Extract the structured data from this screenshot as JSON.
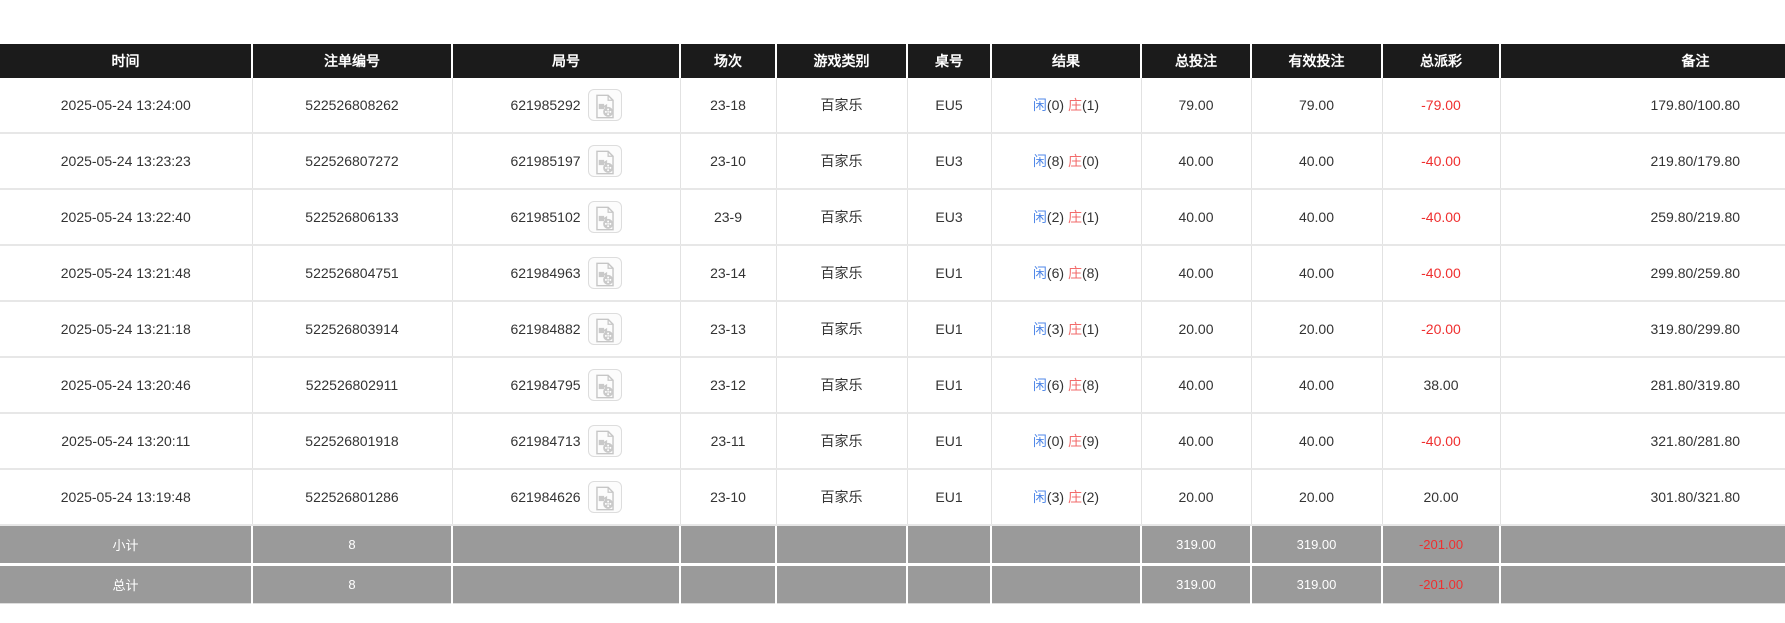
{
  "colors": {
    "header_bg": "#1b1b1b",
    "summary_bg": "#9a9a9a",
    "bet_blue": "#3d7de2",
    "player_blue": "#4f87e8",
    "banker_red": "#f26b6b",
    "loss_red": "#ef2f2f"
  },
  "table": {
    "columns": [
      {
        "label": "时间"
      },
      {
        "label": "注单编号"
      },
      {
        "label": "局号"
      },
      {
        "label": "场次"
      },
      {
        "label": "游戏类别"
      },
      {
        "label": "桌号"
      },
      {
        "label": "结果"
      },
      {
        "label": "总投注"
      },
      {
        "label": "有效投注"
      },
      {
        "label": "总派彩"
      },
      {
        "label": "备注"
      }
    ],
    "rows": [
      {
        "time": "2025-05-24 13:24:00",
        "bet_id": "522526808262",
        "round": "621985292",
        "session": "23-18",
        "game": "百家乐",
        "table_no": "EU5",
        "result_player": "闲",
        "result_player_n": "(0)",
        "result_banker": "庄",
        "result_banker_n": "(1)",
        "total_bet": "79.00",
        "valid_bet": "79.00",
        "payout": "-79.00",
        "remark": "179.80/100.80"
      },
      {
        "time": "2025-05-24 13:23:23",
        "bet_id": "522526807272",
        "round": "621985197",
        "session": "23-10",
        "game": "百家乐",
        "table_no": "EU3",
        "result_player": "闲",
        "result_player_n": "(8)",
        "result_banker": "庄",
        "result_banker_n": "(0)",
        "total_bet": "40.00",
        "valid_bet": "40.00",
        "payout": "-40.00",
        "remark": "219.80/179.80"
      },
      {
        "time": "2025-05-24 13:22:40",
        "bet_id": "522526806133",
        "round": "621985102",
        "session": "23-9",
        "game": "百家乐",
        "table_no": "EU3",
        "result_player": "闲",
        "result_player_n": "(2)",
        "result_banker": "庄",
        "result_banker_n": "(1)",
        "total_bet": "40.00",
        "valid_bet": "40.00",
        "payout": "-40.00",
        "remark": "259.80/219.80"
      },
      {
        "time": "2025-05-24 13:21:48",
        "bet_id": "522526804751",
        "round": "621984963",
        "session": "23-14",
        "game": "百家乐",
        "table_no": "EU1",
        "result_player": "闲",
        "result_player_n": "(6)",
        "result_banker": "庄",
        "result_banker_n": "(8)",
        "total_bet": "40.00",
        "valid_bet": "40.00",
        "payout": "-40.00",
        "remark": "299.80/259.80"
      },
      {
        "time": "2025-05-24 13:21:18",
        "bet_id": "522526803914",
        "round": "621984882",
        "session": "23-13",
        "game": "百家乐",
        "table_no": "EU1",
        "result_player": "闲",
        "result_player_n": "(3)",
        "result_banker": "庄",
        "result_banker_n": "(1)",
        "total_bet": "20.00",
        "valid_bet": "20.00",
        "payout": "-20.00",
        "remark": "319.80/299.80"
      },
      {
        "time": "2025-05-24 13:20:46",
        "bet_id": "522526802911",
        "round": "621984795",
        "session": "23-12",
        "game": "百家乐",
        "table_no": "EU1",
        "result_player": "闲",
        "result_player_n": "(6)",
        "result_banker": "庄",
        "result_banker_n": "(8)",
        "total_bet": "40.00",
        "valid_bet": "40.00",
        "payout": "38.00",
        "remark": "281.80/319.80"
      },
      {
        "time": "2025-05-24 13:20:11",
        "bet_id": "522526801918",
        "round": "621984713",
        "session": "23-11",
        "game": "百家乐",
        "table_no": "EU1",
        "result_player": "闲",
        "result_player_n": "(0)",
        "result_banker": "庄",
        "result_banker_n": "(9)",
        "total_bet": "40.00",
        "valid_bet": "40.00",
        "payout": "-40.00",
        "remark": "321.80/281.80"
      },
      {
        "time": "2025-05-24 13:19:48",
        "bet_id": "522526801286",
        "round": "621984626",
        "session": "23-10",
        "game": "百家乐",
        "table_no": "EU1",
        "result_player": "闲",
        "result_player_n": "(3)",
        "result_banker": "庄",
        "result_banker_n": "(2)",
        "total_bet": "20.00",
        "valid_bet": "20.00",
        "payout": "20.00",
        "remark": "301.80/321.80"
      }
    ],
    "subtotal": {
      "label": "小计",
      "count": "8",
      "total_bet": "319.00",
      "valid_bet": "319.00",
      "payout": "-201.00"
    },
    "total": {
      "label": "总计",
      "count": "8",
      "total_bet": "319.00",
      "valid_bet": "319.00",
      "payout": "-201.00"
    }
  }
}
